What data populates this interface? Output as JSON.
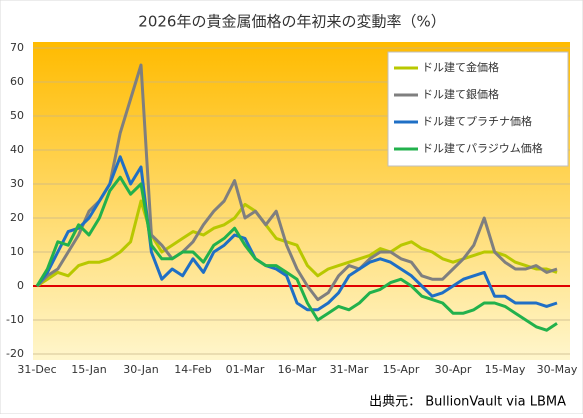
{
  "chart_data": {
    "type": "line",
    "title": "2026年の貴金属価格の年初来の変動率（%）",
    "source": "出典元： BullionVault via LBMA",
    "categories": [
      "31-Dec",
      null,
      null,
      null,
      null,
      "15-Jan",
      null,
      null,
      null,
      null,
      "30-Jan",
      null,
      null,
      null,
      null,
      "14-Feb",
      null,
      null,
      null,
      null,
      "01-Mar",
      null,
      null,
      null,
      null,
      "16-Mar",
      null,
      null,
      null,
      null,
      "31-Mar",
      null,
      null,
      null,
      null,
      "15-Apr",
      null,
      null,
      null,
      null,
      "30-Apr",
      null,
      null,
      null,
      null,
      "15-May",
      null,
      null,
      null,
      null,
      "30-May"
    ],
    "series": [
      {
        "name": "ドル建て金価格",
        "color": "#b8c800",
        "values": [
          0,
          2,
          4,
          3,
          6,
          7,
          7,
          8,
          10,
          13,
          25,
          15,
          10,
          12,
          14,
          16,
          15,
          17,
          18,
          20,
          24,
          22,
          18,
          14,
          13,
          12,
          6,
          3,
          5,
          6,
          7,
          8,
          9,
          11,
          10,
          12,
          13,
          11,
          10,
          8,
          7,
          8,
          9,
          10,
          10,
          9,
          7,
          6,
          5,
          5,
          4
        ]
      },
      {
        "name": "ドル建て銀価格",
        "color": "#7f7f7f",
        "values": [
          0,
          3,
          5,
          10,
          15,
          22,
          25,
          30,
          45,
          55,
          65,
          15,
          12,
          8,
          10,
          13,
          18,
          22,
          25,
          31,
          20,
          22,
          18,
          22,
          12,
          5,
          0,
          -4,
          -2,
          3,
          6,
          5,
          8,
          10,
          10,
          8,
          7,
          3,
          2,
          2,
          5,
          8,
          12,
          20,
          10,
          7,
          5,
          5,
          6,
          4,
          5
        ]
      },
      {
        "name": "ドル建てプラチナ価格",
        "color": "#1f6fc5",
        "values": [
          0,
          4,
          10,
          16,
          17,
          20,
          25,
          30,
          38,
          30,
          35,
          10,
          2,
          5,
          3,
          8,
          4,
          10,
          12,
          15,
          14,
          8,
          6,
          5,
          3,
          -5,
          -7,
          -7,
          -5,
          -2,
          3,
          5,
          7,
          8,
          7,
          5,
          3,
          0,
          -3,
          -2,
          0,
          2,
          3,
          4,
          -3,
          -3,
          -5,
          -5,
          -5,
          -6,
          -5
        ]
      },
      {
        "name": "ドル建てパラジウム価格",
        "color": "#22b14c",
        "values": [
          0,
          5,
          13,
          12,
          18,
          15,
          20,
          28,
          32,
          27,
          30,
          12,
          8,
          8,
          10,
          10,
          7,
          12,
          14,
          17,
          12,
          8,
          6,
          6,
          4,
          2,
          -5,
          -10,
          -8,
          -6,
          -7,
          -5,
          -2,
          -1,
          1,
          2,
          0,
          -3,
          -4,
          -5,
          -8,
          -8,
          -7,
          -5,
          -5,
          -6,
          -8,
          -10,
          -12,
          -13,
          -11
        ]
      }
    ],
    "ylim": [
      -20,
      70
    ],
    "yticks": [
      -20,
      -10,
      0,
      10,
      20,
      30,
      40,
      50,
      60,
      70
    ],
    "grid": true,
    "zero_line_color": "#e00000",
    "legend": "top-right"
  }
}
